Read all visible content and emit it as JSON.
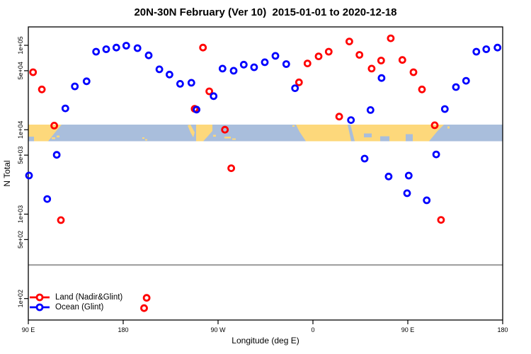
{
  "chart_data": {
    "type": "scatter",
    "title": "20N-30N February (Ver 10)  2015-01-01 to 2020-12-18",
    "xlabel": "Longitude (deg E)",
    "ylabel": "N Total",
    "x_axis": {
      "tick_labels": [
        "90 E",
        "180",
        "90 W",
        "0",
        "90 E",
        "180"
      ],
      "tick_longitudes": [
        90,
        180,
        270,
        360,
        450,
        540
      ],
      "range_extended_deg_e": [
        90,
        540
      ]
    },
    "y_axis": {
      "scale": "log",
      "tick_labels": [
        "1e+05",
        "5e+04",
        "1e+04",
        "5e+03",
        "1e+03",
        "5e+02",
        "1e+02"
      ],
      "tick_values": [
        100000,
        50000,
        10000,
        5000,
        1000,
        500,
        100
      ],
      "range": [
        55,
        165000
      ]
    },
    "reference_line": {
      "value": 250,
      "color": "#999999"
    },
    "map_band": {
      "description": "land/ocean map strip of the 20N-30N latitude band",
      "ocean_color": "#a9bedc",
      "land_color": "#fdd87b",
      "top_value": 11500,
      "bottom_value": 7300
    },
    "legend_position": "bottom-left",
    "series": [
      {
        "name": "Land (Nadir&Glint)",
        "color": "#ff0000",
        "points": [
          [
            94.5,
            48000
          ],
          [
            102.8,
            30000
          ],
          [
            114.6,
            11200
          ],
          [
            120.9,
            850
          ],
          [
            199.8,
            77
          ],
          [
            202.2,
            102
          ],
          [
            247.8,
            17700
          ],
          [
            255.7,
            94000
          ],
          [
            261.7,
            28500
          ],
          [
            276.5,
            10000
          ],
          [
            282.5,
            3500
          ],
          [
            346.8,
            36400
          ],
          [
            354.8,
            61000
          ],
          [
            365.4,
            74000
          ],
          [
            375.0,
            84000
          ],
          [
            384.9,
            14300
          ],
          [
            394.5,
            111000
          ],
          [
            404.1,
            77000
          ],
          [
            415.7,
            53000
          ],
          [
            424.7,
            66000
          ],
          [
            433.8,
            121000
          ],
          [
            444.8,
            67000
          ],
          [
            455.4,
            48000
          ],
          [
            463.4,
            30000
          ],
          [
            475.5,
            11300
          ],
          [
            481.5,
            855
          ]
        ]
      },
      {
        "name": "Ocean (Glint)",
        "color": "#0000ff",
        "points": [
          [
            90.7,
            2870
          ],
          [
            107.9,
            1510
          ],
          [
            116.9,
            5040
          ],
          [
            125.1,
            17900
          ],
          [
            134.1,
            32600
          ],
          [
            145.3,
            37500
          ],
          [
            154.3,
            84000
          ],
          [
            163.9,
            90000
          ],
          [
            173.5,
            94000
          ],
          [
            182.9,
            99000
          ],
          [
            193.6,
            92500
          ],
          [
            204.2,
            76000
          ],
          [
            214.3,
            52000
          ],
          [
            223.9,
            45000
          ],
          [
            234.0,
            35000
          ],
          [
            244.7,
            36000
          ],
          [
            249.6,
            17300
          ],
          [
            265.8,
            25000
          ],
          [
            274.2,
            53000
          ],
          [
            284.8,
            50000
          ],
          [
            294.4,
            59000
          ],
          [
            304.2,
            55000
          ],
          [
            314.3,
            63000
          ],
          [
            324.4,
            75000
          ],
          [
            334.7,
            60000
          ],
          [
            343.0,
            31000
          ],
          [
            396.1,
            13000
          ],
          [
            409.0,
            4550
          ],
          [
            414.6,
            17100
          ],
          [
            425.1,
            41000
          ],
          [
            431.8,
            2790
          ],
          [
            449.3,
            1770
          ],
          [
            450.9,
            2860
          ],
          [
            467.9,
            1460
          ],
          [
            476.9,
            5100
          ],
          [
            485.1,
            17600
          ],
          [
            495.7,
            32000
          ],
          [
            505.3,
            38000
          ],
          [
            515.0,
            84000
          ],
          [
            524.4,
            90000
          ],
          [
            535.1,
            94000
          ]
        ]
      }
    ]
  }
}
